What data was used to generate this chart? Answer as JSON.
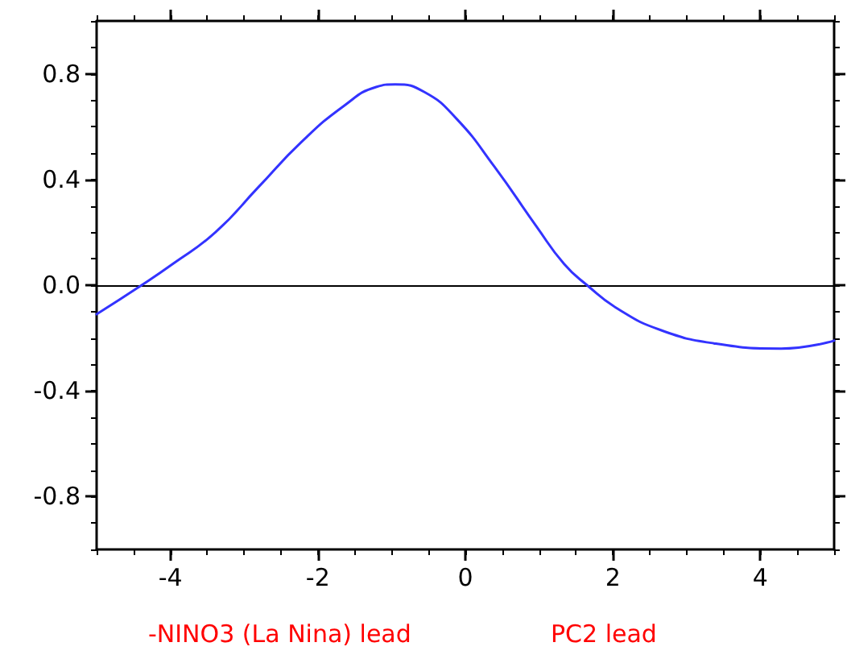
{
  "chart_data": {
    "type": "line",
    "x": [
      -5,
      -4.39,
      -3.97,
      -3.39,
      -2.81,
      -2.23,
      -1.64,
      -1.21,
      -0.95,
      -0.55,
      -0.12,
      0.39,
      0.97,
      1.34,
      1.65,
      2.07,
      2.65,
      3.37,
      4.28,
      5
    ],
    "series": [
      {
        "color": "#3333ff",
        "values": [
          -0.11,
          0,
          0.08,
          0.2,
          0.37,
          0.54,
          0.68,
          0.75,
          0.76,
          0.73,
          0.63,
          0.45,
          0.22,
          0.08,
          0,
          -0.09,
          -0.17,
          -0.22,
          -0.24,
          -0.21
        ]
      }
    ],
    "xlim": [
      -5,
      5
    ],
    "xticks": [
      -4,
      -2,
      0,
      2,
      4
    ],
    "ylim": [
      -1,
      1
    ],
    "yticks": [
      {
        "value": -0.8,
        "label": "-0.8"
      },
      {
        "value": -0.4,
        "label": "-0.4"
      },
      {
        "value": 0,
        "label": "0.0"
      },
      {
        "value": 0.4,
        "label": "0.4"
      },
      {
        "value": 0.8,
        "label": "0.8"
      }
    ],
    "ref_lines": [
      {
        "axis": "y",
        "value": 0,
        "color": "#000000"
      }
    ],
    "annotations": [
      "-NINO3 (La Nina) lead",
      "PC2 lead"
    ],
    "grid": false,
    "marker": "none",
    "line_style": "solid"
  }
}
